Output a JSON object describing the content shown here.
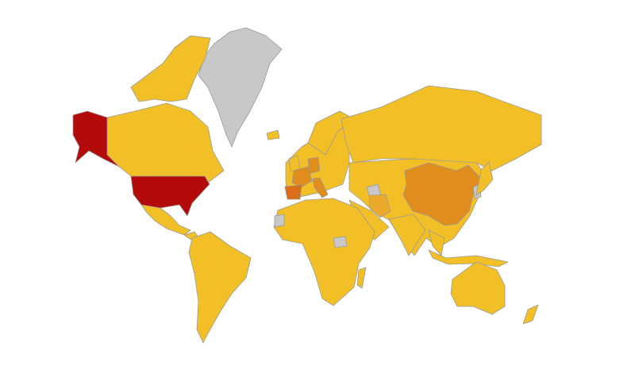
{
  "map": {
    "type": "choropleth-world",
    "legend": "none",
    "colors": {
      "highest": "#B30B0B",
      "high": "#DB6E1A",
      "medium": "#E08D1E",
      "low-medium": "#EBA92C",
      "low": "#F2C026",
      "no-data": "#C8C8C8",
      "border": "#9A9A9A"
    },
    "regions": [
      {
        "id": "greenland",
        "category": "no-data"
      },
      {
        "id": "canada",
        "category": "low"
      },
      {
        "id": "canada-arctic-islands",
        "category": "low"
      },
      {
        "id": "alaska",
        "category": "highest"
      },
      {
        "id": "united-states",
        "category": "highest"
      },
      {
        "id": "mexico",
        "category": "low"
      },
      {
        "id": "central-america",
        "category": "low"
      },
      {
        "id": "south-america",
        "category": "low"
      },
      {
        "id": "europe",
        "category": "low"
      },
      {
        "id": "scandinavia",
        "category": "low"
      },
      {
        "id": "iceland",
        "category": "low"
      },
      {
        "id": "united-kingdom",
        "category": "low"
      },
      {
        "id": "france",
        "category": "medium"
      },
      {
        "id": "germany",
        "category": "medium"
      },
      {
        "id": "italy",
        "category": "medium"
      },
      {
        "id": "spain",
        "category": "high"
      },
      {
        "id": "russia",
        "category": "low"
      },
      {
        "id": "central-asia",
        "category": "low"
      },
      {
        "id": "turkmenistan",
        "category": "no-data"
      },
      {
        "id": "iran",
        "category": "low-medium"
      },
      {
        "id": "arabia",
        "category": "low"
      },
      {
        "id": "india",
        "category": "low"
      },
      {
        "id": "china",
        "category": "medium"
      },
      {
        "id": "korea",
        "category": "no-data"
      },
      {
        "id": "japan",
        "category": "low"
      },
      {
        "id": "southeast-asia",
        "category": "low"
      },
      {
        "id": "indonesia",
        "category": "low"
      },
      {
        "id": "africa",
        "category": "low"
      },
      {
        "id": "western-sahara",
        "category": "no-data"
      },
      {
        "id": "south-sudan",
        "category": "no-data"
      },
      {
        "id": "madagascar",
        "category": "low"
      },
      {
        "id": "australia",
        "category": "low"
      },
      {
        "id": "new-zealand",
        "category": "low"
      }
    ]
  }
}
